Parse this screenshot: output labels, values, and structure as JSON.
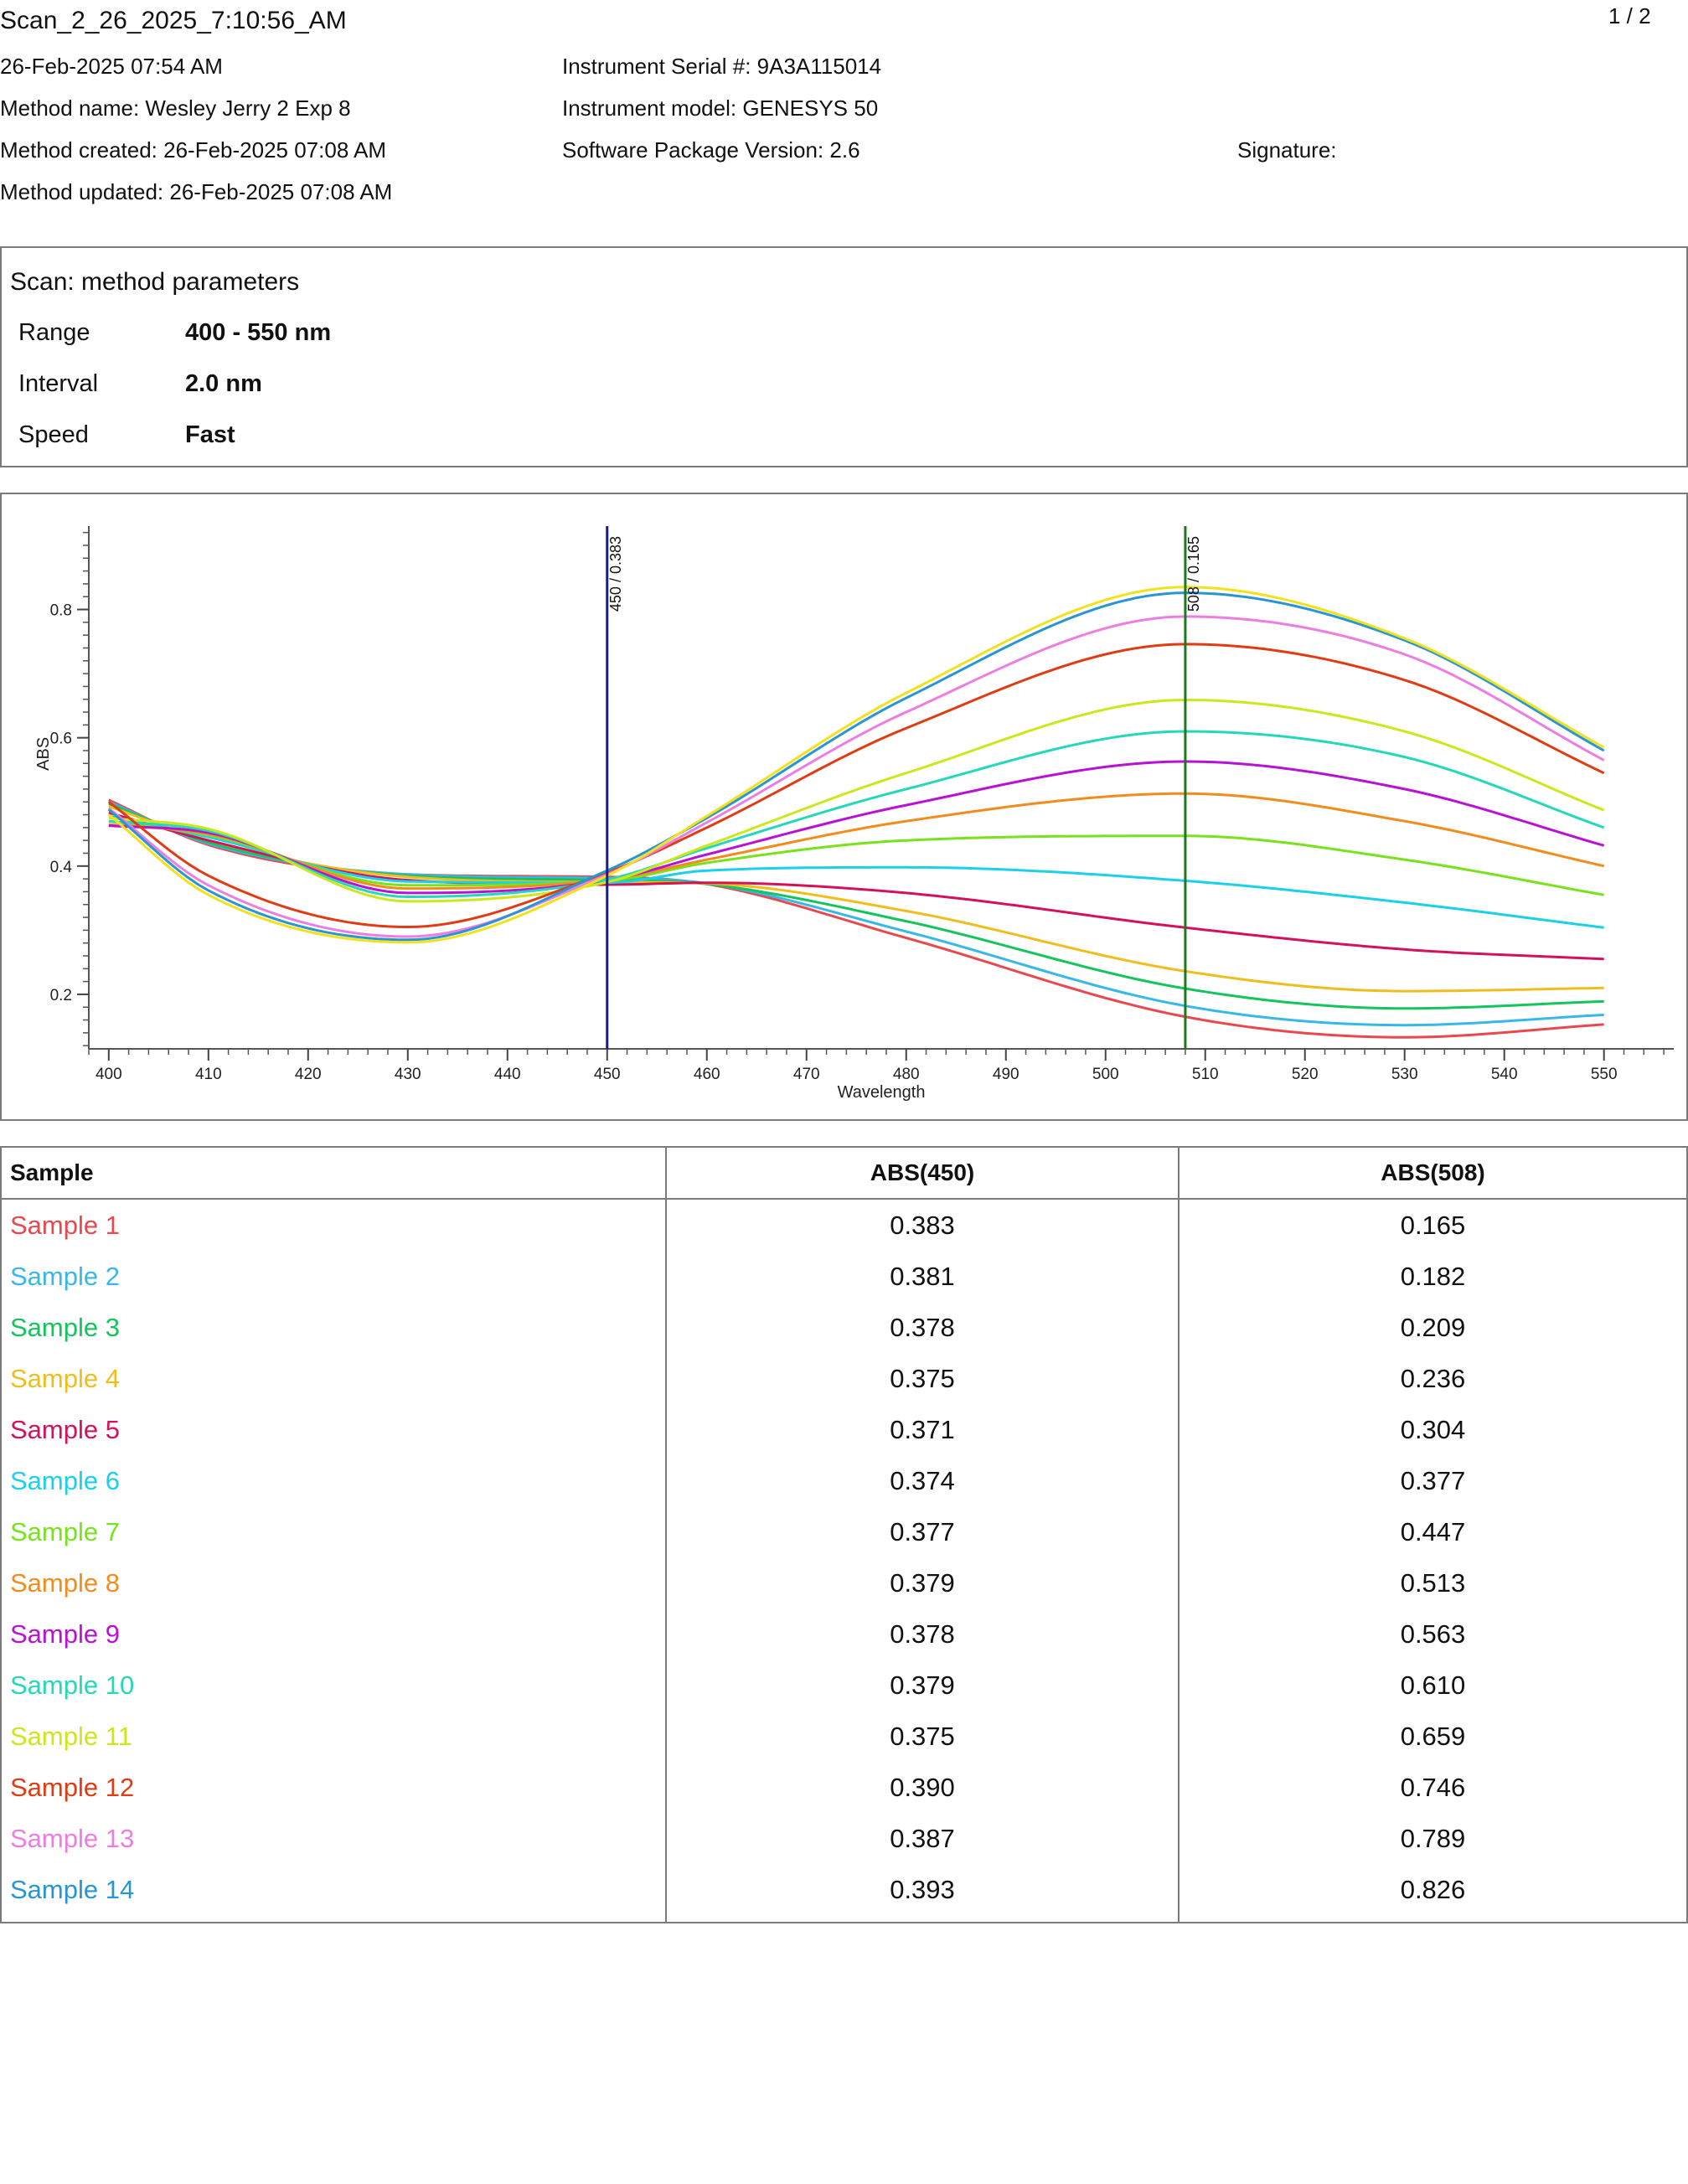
{
  "header": {
    "scan_title": "Scan_2_26_2025_7:10:56_AM",
    "page_number": "1 / 2",
    "date": "26-Feb-2025 07:54 AM",
    "method_name": "Method name: Wesley Jerry 2 Exp 8",
    "method_created": "Method created: 26-Feb-2025 07:08 AM",
    "method_updated": "Method updated: 26-Feb-2025 07:08 AM",
    "instrument_serial": "Instrument Serial #: 9A3A115014",
    "instrument_model": "Instrument model: GENESYS 50",
    "software_version": "Software Package Version: 2.6",
    "signature_label": "Signature:"
  },
  "parameters": {
    "title": "Scan: method parameters",
    "rows": [
      {
        "label": "Range",
        "value": "400 - 550 nm"
      },
      {
        "label": "Interval",
        "value": "2.0 nm"
      },
      {
        "label": "Speed",
        "value": "Fast"
      }
    ]
  },
  "chart_data": {
    "type": "line",
    "xlabel": "Wavelength",
    "ylabel": "ABS",
    "xlim": [
      398,
      557
    ],
    "ylim": [
      0.115,
      0.93
    ],
    "x_ticks": [
      400,
      410,
      420,
      430,
      440,
      450,
      460,
      470,
      480,
      490,
      500,
      510,
      520,
      530,
      540,
      550
    ],
    "y_ticks": [
      0.2,
      0.4,
      0.6,
      0.8
    ],
    "grid": false,
    "x_knots": [
      400,
      410,
      430,
      450,
      460,
      480,
      508,
      530,
      550
    ],
    "markers": [
      {
        "x": 450,
        "label": "450 / 0.383",
        "color": "#1a1a8c"
      },
      {
        "x": 508,
        "label": "508 / 0.165",
        "color": "#1a7a1a"
      }
    ],
    "series": [
      {
        "name": "Sample 1",
        "color": "#e8494f",
        "y_knots": [
          0.503,
          0.433,
          0.387,
          0.383,
          0.372,
          0.288,
          0.165,
          0.133,
          0.153
        ]
      },
      {
        "name": "Sample 2",
        "color": "#38b8e8",
        "y_knots": [
          0.5,
          0.435,
          0.387,
          0.381,
          0.373,
          0.298,
          0.182,
          0.152,
          0.168
        ]
      },
      {
        "name": "Sample 3",
        "color": "#14c45c",
        "y_knots": [
          0.497,
          0.437,
          0.385,
          0.378,
          0.372,
          0.314,
          0.209,
          0.178,
          0.189
        ]
      },
      {
        "name": "Sample 4",
        "color": "#f0be1c",
        "y_knots": [
          0.493,
          0.44,
          0.383,
          0.375,
          0.373,
          0.33,
          0.236,
          0.205,
          0.21
        ]
      },
      {
        "name": "Sample 5",
        "color": "#d4125c",
        "y_knots": [
          0.483,
          0.44,
          0.378,
          0.371,
          0.374,
          0.358,
          0.304,
          0.27,
          0.255
        ]
      },
      {
        "name": "Sample 6",
        "color": "#1cd0ea",
        "y_knots": [
          0.478,
          0.445,
          0.376,
          0.374,
          0.393,
          0.398,
          0.377,
          0.343,
          0.304
        ]
      },
      {
        "name": "Sample 7",
        "color": "#78e21c",
        "y_knots": [
          0.47,
          0.448,
          0.37,
          0.377,
          0.405,
          0.44,
          0.447,
          0.41,
          0.355
        ]
      },
      {
        "name": "Sample 8",
        "color": "#f28c1c",
        "y_knots": [
          0.465,
          0.45,
          0.365,
          0.379,
          0.41,
          0.47,
          0.513,
          0.47,
          0.4
        ]
      },
      {
        "name": "Sample 9",
        "color": "#b812d4",
        "y_knots": [
          0.463,
          0.452,
          0.358,
          0.378,
          0.418,
          0.495,
          0.563,
          0.52,
          0.432
        ]
      },
      {
        "name": "Sample 10",
        "color": "#24d8b8",
        "y_knots": [
          0.47,
          0.455,
          0.352,
          0.379,
          0.428,
          0.52,
          0.61,
          0.57,
          0.46
        ]
      },
      {
        "name": "Sample 11",
        "color": "#cce81c",
        "y_knots": [
          0.475,
          0.458,
          0.345,
          0.375,
          0.432,
          0.545,
          0.659,
          0.61,
          0.487
        ]
      },
      {
        "name": "Sample 12",
        "color": "#e03c14",
        "y_knots": [
          0.5,
          0.385,
          0.305,
          0.39,
          0.46,
          0.615,
          0.746,
          0.69,
          0.545
        ]
      },
      {
        "name": "Sample 13",
        "color": "#ec7ee2",
        "y_knots": [
          0.49,
          0.37,
          0.29,
          0.387,
          0.468,
          0.64,
          0.789,
          0.73,
          0.565
        ]
      },
      {
        "name": "Sample 14",
        "color": "#2896d2",
        "y_knots": [
          0.488,
          0.362,
          0.285,
          0.393,
          0.475,
          0.662,
          0.826,
          0.752,
          0.58
        ]
      },
      {
        "color": "#f2e21c",
        "y_knots": [
          0.48,
          0.355,
          0.281,
          0.385,
          0.478,
          0.67,
          0.835,
          0.755,
          0.585
        ]
      }
    ]
  },
  "results_table": {
    "headers": [
      "Sample",
      "ABS(450)",
      "ABS(508)"
    ],
    "rows": [
      {
        "sample": "Sample 1",
        "abs450": "0.383",
        "abs508": "0.165",
        "color": "#e8494f"
      },
      {
        "sample": "Sample 2",
        "abs450": "0.381",
        "abs508": "0.182",
        "color": "#38b8e8"
      },
      {
        "sample": "Sample 3",
        "abs450": "0.378",
        "abs508": "0.209",
        "color": "#14c45c"
      },
      {
        "sample": "Sample 4",
        "abs450": "0.375",
        "abs508": "0.236",
        "color": "#f0be1c"
      },
      {
        "sample": "Sample 5",
        "abs450": "0.371",
        "abs508": "0.304",
        "color": "#d4125c"
      },
      {
        "sample": "Sample 6",
        "abs450": "0.374",
        "abs508": "0.377",
        "color": "#1cd0ea"
      },
      {
        "sample": "Sample 7",
        "abs450": "0.377",
        "abs508": "0.447",
        "color": "#78e21c"
      },
      {
        "sample": "Sample 8",
        "abs450": "0.379",
        "abs508": "0.513",
        "color": "#f28c1c"
      },
      {
        "sample": "Sample 9",
        "abs450": "0.378",
        "abs508": "0.563",
        "color": "#b812d4"
      },
      {
        "sample": "Sample 10",
        "abs450": "0.379",
        "abs508": "0.610",
        "color": "#24d8b8"
      },
      {
        "sample": "Sample 11",
        "abs450": "0.375",
        "abs508": "0.659",
        "color": "#cce81c"
      },
      {
        "sample": "Sample 12",
        "abs450": "0.390",
        "abs508": "0.746",
        "color": "#e03c14"
      },
      {
        "sample": "Sample 13",
        "abs450": "0.387",
        "abs508": "0.789",
        "color": "#ec7ee2"
      },
      {
        "sample": "Sample 14",
        "abs450": "0.393",
        "abs508": "0.826",
        "color": "#2896d2"
      }
    ]
  }
}
